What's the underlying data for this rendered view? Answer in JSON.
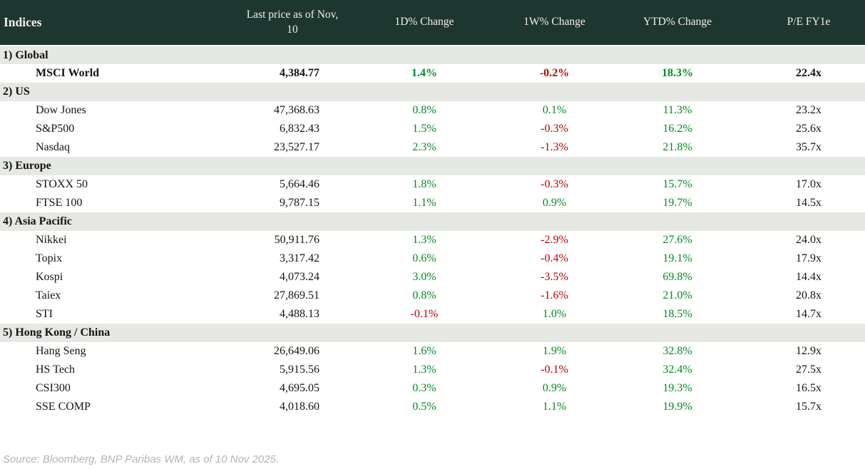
{
  "table": {
    "header": {
      "indices_label": "Indices",
      "columns": [
        "Last price as of Nov, 10",
        "1D% Change",
        "1W% Change",
        "YTD% Change",
        "P/E FY1e"
      ]
    },
    "sections": [
      {
        "label": "1) Global",
        "rows": [
          {
            "name": "MSCI World",
            "price": "4,384.77",
            "d1": "1.4%",
            "w1": "-0.2%",
            "ytd": "18.3%",
            "pe": "22.4x",
            "bold": true
          }
        ]
      },
      {
        "label": "2) US",
        "rows": [
          {
            "name": "Dow Jones",
            "price": "47,368.63",
            "d1": "0.8%",
            "w1": "0.1%",
            "ytd": "11.3%",
            "pe": "23.2x"
          },
          {
            "name": "S&P500",
            "price": "6,832.43",
            "d1": "1.5%",
            "w1": "-0.3%",
            "ytd": "16.2%",
            "pe": "25.6x"
          },
          {
            "name": "Nasdaq",
            "price": "23,527.17",
            "d1": "2.3%",
            "w1": "-1.3%",
            "ytd": "21.8%",
            "pe": "35.7x"
          }
        ]
      },
      {
        "label": "3) Europe",
        "rows": [
          {
            "name": "STOXX 50",
            "price": "5,664.46",
            "d1": "1.8%",
            "w1": "-0.3%",
            "ytd": "15.7%",
            "pe": "17.0x"
          },
          {
            "name": "FTSE 100",
            "price": "9,787.15",
            "d1": "1.1%",
            "w1": "0.9%",
            "ytd": "19.7%",
            "pe": "14.5x"
          }
        ]
      },
      {
        "label": "4) Asia Pacific",
        "rows": [
          {
            "name": "Nikkei",
            "price": "50,911.76",
            "d1": "1.3%",
            "w1": "-2.9%",
            "ytd": "27.6%",
            "pe": "24.0x"
          },
          {
            "name": "Topix",
            "price": "3,317.42",
            "d1": "0.6%",
            "w1": "-0.4%",
            "ytd": "19.1%",
            "pe": "17.9x"
          },
          {
            "name": "Kospi",
            "price": "4,073.24",
            "d1": "3.0%",
            "w1": "-3.5%",
            "ytd": "69.8%",
            "pe": "14.4x"
          },
          {
            "name": "Taiex",
            "price": "27,869.51",
            "d1": "0.8%",
            "w1": "-1.6%",
            "ytd": "21.0%",
            "pe": "20.8x"
          },
          {
            "name": "STI",
            "price": "4,488.13",
            "d1": "-0.1%",
            "w1": "1.0%",
            "ytd": "18.5%",
            "pe": "14.7x"
          }
        ]
      },
      {
        "label": "5) Hong Kong / China",
        "rows": [
          {
            "name": "Hang Seng",
            "price": "26,649.06",
            "d1": "1.6%",
            "w1": "1.9%",
            "ytd": "32.8%",
            "pe": "12.9x"
          },
          {
            "name": "HS Tech",
            "price": "5,915.56",
            "d1": "1.3%",
            "w1": "-0.1%",
            "ytd": "32.4%",
            "pe": "27.5x"
          },
          {
            "name": "CSI300",
            "price": "4,695.05",
            "d1": "0.3%",
            "w1": "0.9%",
            "ytd": "19.3%",
            "pe": "16.5x"
          },
          {
            "name": "SSE COMP",
            "price": "4,018.60",
            "d1": "0.5%",
            "w1": "1.1%",
            "ytd": "19.9%",
            "pe": "15.7x"
          }
        ]
      }
    ]
  },
  "footer": {
    "source": "Source: Bloomberg, BNP Paribas WM, as of 10 Nov 2025."
  },
  "colors": {
    "header_bg": "#1E3630",
    "section_bg": "#E5E8E3",
    "positive": "#008C1E",
    "negative": "#C00000",
    "text": "#141414",
    "footer_text": "#AEB6BD"
  },
  "chart_data": {
    "type": "table",
    "title": "Indices",
    "columns": [
      "Indices",
      "Last price as of Nov, 10",
      "1D% Change",
      "1W% Change",
      "YTD% Change",
      "P/E FY1e"
    ],
    "rows": [
      [
        "1) Global",
        "",
        "",
        "",
        "",
        ""
      ],
      [
        "MSCI World",
        "4,384.77",
        "1.4%",
        "-0.2%",
        "18.3%",
        "22.4x"
      ],
      [
        "2) US",
        "",
        "",
        "",
        "",
        ""
      ],
      [
        "Dow Jones",
        "47,368.63",
        "0.8%",
        "0.1%",
        "11.3%",
        "23.2x"
      ],
      [
        "S&P500",
        "6,832.43",
        "1.5%",
        "-0.3%",
        "16.2%",
        "25.6x"
      ],
      [
        "Nasdaq",
        "23,527.17",
        "2.3%",
        "-1.3%",
        "21.8%",
        "35.7x"
      ],
      [
        "3) Europe",
        "",
        "",
        "",
        "",
        ""
      ],
      [
        "STOXX 50",
        "5,664.46",
        "1.8%",
        "-0.3%",
        "15.7%",
        "17.0x"
      ],
      [
        "FTSE 100",
        "9,787.15",
        "1.1%",
        "0.9%",
        "19.7%",
        "14.5x"
      ],
      [
        "4) Asia Pacific",
        "",
        "",
        "",
        "",
        ""
      ],
      [
        "Nikkei",
        "50,911.76",
        "1.3%",
        "-2.9%",
        "27.6%",
        "24.0x"
      ],
      [
        "Topix",
        "3,317.42",
        "0.6%",
        "-0.4%",
        "19.1%",
        "17.9x"
      ],
      [
        "Kospi",
        "4,073.24",
        "3.0%",
        "-3.5%",
        "69.8%",
        "14.4x"
      ],
      [
        "Taiex",
        "27,869.51",
        "0.8%",
        "-1.6%",
        "21.0%",
        "20.8x"
      ],
      [
        "STI",
        "4,488.13",
        "-0.1%",
        "1.0%",
        "18.5%",
        "14.7x"
      ],
      [
        "5) Hong Kong / China",
        "",
        "",
        "",
        "",
        ""
      ],
      [
        "Hang Seng",
        "26,649.06",
        "1.6%",
        "1.9%",
        "32.8%",
        "12.9x"
      ],
      [
        "HS Tech",
        "5,915.56",
        "1.3%",
        "-0.1%",
        "32.4%",
        "27.5x"
      ],
      [
        "CSI300",
        "4,695.05",
        "0.3%",
        "0.9%",
        "19.3%",
        "16.5x"
      ],
      [
        "SSE COMP",
        "4,018.60",
        "0.5%",
        "1.1%",
        "19.9%",
        "15.7x"
      ]
    ],
    "source": "Source: Bloomberg, BNP Paribas WM, as of 10 Nov 2025.",
    "value_color_rule": "negative values red, positive values green"
  }
}
